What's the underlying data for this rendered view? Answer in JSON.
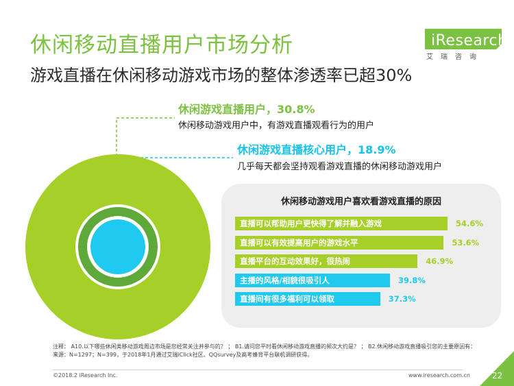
{
  "header": {
    "title": "休闲移动直播用户市场分析",
    "subtitle": "游戏直播在休闲移动游戏市场的整体渗透率已超30%"
  },
  "logo": {
    "main": "iResearch",
    "sub": "艾瑞咨询",
    "color": "#7cc242"
  },
  "callouts": {
    "outer": {
      "title": "休闲游戏直播用户，30.8%",
      "desc": "休闲移动游戏用户中，有游戏直播观看行为的用户",
      "color": "#7cc242"
    },
    "inner": {
      "title": "休闲游戏直播核心用户，18.9%",
      "desc": "几乎每天都会坚持观看游戏直播的休闲移动游戏用户",
      "color": "#16c2e8"
    }
  },
  "chart_data": {
    "type": "bar",
    "title": "休闲移动游戏用户喜欢看游戏直播的原因",
    "categories": [
      "直播可以帮助用户更快得了解并融入游戏",
      "直播可以有效提高用户的游戏水平",
      "直播平台的互动效果好，很热闹",
      "主播的风格/相貌很吸引人",
      "直播间有很多福利可以领取"
    ],
    "values": [
      54.6,
      53.6,
      46.9,
      39.8,
      37.3
    ],
    "value_labels": [
      "54.6%",
      "53.6%",
      "46.9%",
      "39.8%",
      "37.3%"
    ],
    "colors": [
      "#a6cf28",
      "#a6cf28",
      "#a6cf28",
      "#20c9ee",
      "#20c9ee"
    ],
    "value_colors": [
      "#a6cf28",
      "#a6cf28",
      "#a6cf28",
      "#20c9ee",
      "#20c9ee"
    ]
  },
  "footer": {
    "notes": [
      "注释：    A10.以下哪些休闲类移动游戏周边市场是您经常关注并参与的？ ；  B1.请问您平时看休闲移动游戏直播的频次大约是？ ；  B2.休闲移动游戏直播吸引您的主要原因有：",
      "来源：N=1297；N=399，于2018年1月通过艾瑞iClick社区、QQsurvey及高考蜂背平台联机调研获得。"
    ],
    "copyright": "©2018.2 iResearch Inc.",
    "site": "www.iresearch.com.cn",
    "page": "22"
  }
}
